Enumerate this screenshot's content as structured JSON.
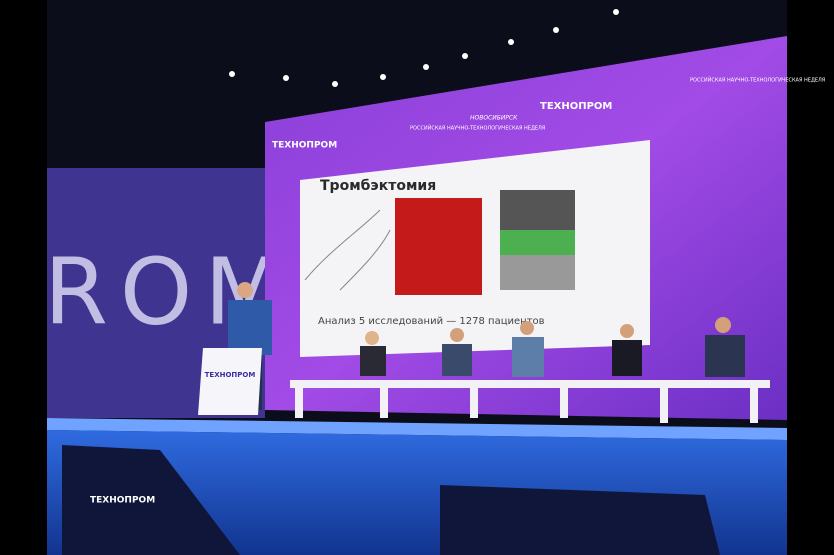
{
  "wall_text": "ROM",
  "screen": {
    "logos": [
      "ТЕХНОПРОМ",
      "РОССИЙСКАЯ НАУЧНО-ТЕХНОЛОГИЧЕСКАЯ НЕДЕЛЯ",
      "НОВОСИБИРСК"
    ],
    "slide": {
      "title": "Тромбэктомия",
      "caption": "Анализ 5 исследований — 1278 пациентов"
    }
  },
  "podium": {
    "logo": "ТЕХНОПРОМ"
  },
  "floor_banner": {
    "logo": "ТЕХНОПРОМ"
  }
}
